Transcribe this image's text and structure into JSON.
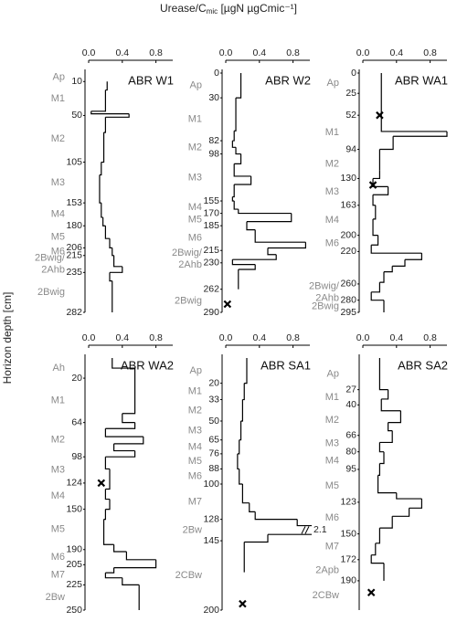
{
  "figure": {
    "x_title": {
      "main": "Urease/C",
      "sub": "mic",
      "unit": " [µgN µgCmic⁻¹]"
    },
    "y_title": "Horizon depth [cm]"
  },
  "chart_data": [
    {
      "type": "step",
      "title": "ABR W1",
      "color": "#000000",
      "xlim": [
        0,
        1.0
      ],
      "xticks": [
        {
          "value": 0,
          "label": "0.0"
        },
        0.4,
        0.8
      ],
      "ylim": [
        0,
        282
      ],
      "yticks": [
        10,
        50,
        105,
        153,
        180,
        206,
        215,
        235,
        282
      ],
      "depths": [
        10,
        20,
        45,
        48,
        52,
        70,
        105,
        120,
        153,
        170,
        180,
        195,
        206,
        215,
        228,
        235,
        245,
        282
      ],
      "values": [
        0.22,
        0.2,
        0.03,
        0.48,
        0.2,
        0.18,
        0.15,
        0.13,
        0.15,
        0.17,
        0.2,
        0.25,
        0.28,
        0.3,
        0.4,
        0.25,
        0.28
      ],
      "marker_values": [],
      "marker_depths": [],
      "horizons": [
        {
          "name": [
            "Ap"
          ],
          "top": 0,
          "bottom": 10
        },
        {
          "name": [
            "M1"
          ],
          "top": 10,
          "bottom": 50
        },
        {
          "name": [
            "M2"
          ],
          "top": 50,
          "bottom": 105
        },
        {
          "name": [
            "M3"
          ],
          "top": 105,
          "bottom": 153
        },
        {
          "name": [
            "M4"
          ],
          "top": 153,
          "bottom": 180
        },
        {
          "name": [
            "M5"
          ],
          "top": 180,
          "bottom": 206
        },
        {
          "name": [
            "M6"
          ],
          "top": 206,
          "bottom": 215
        },
        {
          "name": [
            "2Bwig/",
            "2Ahb"
          ],
          "top": 215,
          "bottom": 235
        },
        {
          "name": [
            "2Bwig"
          ],
          "top": 235,
          "bottom": 282
        }
      ]
    },
    {
      "type": "step",
      "title": "ABR W2",
      "color": "#000000",
      "xlim": [
        0,
        1.0
      ],
      "xticks": [
        {
          "value": 0,
          "label": "0.0"
        },
        0.4,
        0.8
      ],
      "ylim": [
        0,
        290
      ],
      "yticks": [
        0,
        30,
        82,
        98,
        155,
        170,
        185,
        215,
        230,
        262,
        290
      ],
      "depths": [
        0,
        30,
        70,
        82,
        90,
        98,
        110,
        125,
        135,
        150,
        155,
        165,
        170,
        180,
        190,
        205,
        212,
        220,
        226,
        232,
        238,
        262
      ],
      "values": [
        0.18,
        0.12,
        0.1,
        0.08,
        0.12,
        0.18,
        0.1,
        0.3,
        0.1,
        0.08,
        0.1,
        0.15,
        0.78,
        0.25,
        0.35,
        0.95,
        0.5,
        0.6,
        0.08,
        0.35,
        0.15
      ],
      "marker_values": [
        0.02
      ],
      "marker_depths": [
        280
      ],
      "horizons": [
        {
          "name": [
            "Ap"
          ],
          "top": 0,
          "bottom": 30
        },
        {
          "name": [
            "M1"
          ],
          "top": 30,
          "bottom": 82
        },
        {
          "name": [
            "M2"
          ],
          "top": 82,
          "bottom": 98
        },
        {
          "name": [
            "M3"
          ],
          "top": 98,
          "bottom": 155
        },
        {
          "name": [
            "M4"
          ],
          "top": 155,
          "bottom": 170
        },
        {
          "name": [
            "M5"
          ],
          "top": 170,
          "bottom": 185
        },
        {
          "name": [
            "M6"
          ],
          "top": 185,
          "bottom": 215
        },
        {
          "name": [
            "2Bwig/",
            "2Ahb"
          ],
          "top": 215,
          "bottom": 235
        },
        {
          "name": [
            "2Bwig"
          ],
          "top": 262,
          "bottom": 290
        }
      ]
    },
    {
      "type": "step",
      "title": "ABR WA1",
      "color": "#000000",
      "xlim": [
        0,
        1.0
      ],
      "xticks": [
        {
          "value": 0,
          "label": "0.0"
        },
        0.4,
        0.8
      ],
      "ylim": [
        0,
        295
      ],
      "yticks": [
        0,
        25,
        52,
        94,
        130,
        163,
        200,
        220,
        260,
        280,
        295
      ],
      "depths": [
        0,
        72,
        78,
        94,
        120,
        130,
        140,
        150,
        163,
        180,
        200,
        212,
        222,
        230,
        238,
        245,
        258,
        270,
        280,
        295
      ],
      "values": [
        0.22,
        1.0,
        0.36,
        0.2,
        0.2,
        0.12,
        0.3,
        0.12,
        0.15,
        0.12,
        0.18,
        0.1,
        0.7,
        0.5,
        0.35,
        0.25,
        0.2,
        0.1,
        0.25
      ],
      "marker_values": [
        0.2,
        0.12
      ],
      "marker_depths": [
        52,
        138
      ],
      "horizons": [
        {
          "name": [
            "Ap"
          ],
          "top": 0,
          "bottom": 25
        },
        {
          "name": [
            "M1"
          ],
          "top": 52,
          "bottom": 94
        },
        {
          "name": [
            "M2"
          ],
          "top": 94,
          "bottom": 130
        },
        {
          "name": [
            "M3"
          ],
          "top": 130,
          "bottom": 163
        },
        {
          "name": [
            "M4"
          ],
          "top": 163,
          "bottom": 200
        },
        {
          "name": [
            "M6"
          ],
          "top": 200,
          "bottom": 220
        },
        {
          "name": [
            "2Bwig/",
            "2Ahb"
          ],
          "top": 260,
          "bottom": 280
        },
        {
          "name": [
            "2Bwig"
          ],
          "top": 280,
          "bottom": 295
        }
      ]
    },
    {
      "type": "step",
      "title": "ABR WA2",
      "color": "#000000",
      "xlim": [
        0,
        1.0
      ],
      "xticks": [
        {
          "value": 0,
          "label": "0.0"
        },
        0.4,
        0.8
      ],
      "ylim": [
        0,
        250
      ],
      "yticks": [
        20,
        64,
        98,
        124,
        150,
        190,
        205,
        225,
        250
      ],
      "depths": [
        0,
        10,
        55,
        64,
        70,
        78,
        85,
        92,
        98,
        110,
        130,
        140,
        150,
        160,
        185,
        192,
        200,
        208,
        213,
        218,
        225,
        250
      ],
      "values": [
        0.28,
        0.55,
        0.4,
        0.55,
        0.2,
        0.65,
        0.3,
        0.55,
        0.2,
        0.25,
        0.2,
        0.25,
        0.2,
        0.18,
        0.3,
        0.45,
        0.8,
        0.3,
        0.2,
        0.4,
        0.6
      ],
      "marker_values": [
        0.15
      ],
      "marker_depths": [
        124
      ],
      "horizons": [
        {
          "name": [
            "Ah"
          ],
          "top": 0,
          "bottom": 20
        },
        {
          "name": [
            "M1"
          ],
          "top": 20,
          "bottom": 64
        },
        {
          "name": [
            "M2"
          ],
          "top": 64,
          "bottom": 98
        },
        {
          "name": [
            "M3"
          ],
          "top": 98,
          "bottom": 124
        },
        {
          "name": [
            "M4"
          ],
          "top": 124,
          "bottom": 150
        },
        {
          "name": [
            "M5"
          ],
          "top": 150,
          "bottom": 190
        },
        {
          "name": [
            "M6"
          ],
          "top": 190,
          "bottom": 205
        },
        {
          "name": [
            "M7"
          ],
          "top": 205,
          "bottom": 225
        },
        {
          "name": [
            "2Bw"
          ],
          "top": 225,
          "bottom": 250
        }
      ]
    },
    {
      "type": "step",
      "title": "ABR SA1",
      "color": "#000000",
      "xlim": [
        0,
        1.0
      ],
      "xticks": [
        {
          "value": 0,
          "label": "0.0"
        },
        0.4,
        0.8
      ],
      "ylim": [
        0,
        200
      ],
      "yticks": [
        20,
        33,
        50,
        65,
        76,
        88,
        100,
        128,
        145,
        200
      ],
      "depths": [
        0,
        20,
        33,
        50,
        65,
        76,
        88,
        100,
        115,
        122,
        128,
        133,
        140,
        146,
        170
      ],
      "values": [
        0.25,
        0.22,
        0.2,
        0.18,
        0.16,
        0.14,
        0.16,
        0.2,
        0.28,
        0.35,
        0.85,
        2.1,
        0.5,
        0.22
      ],
      "marker_values": [
        0.2
      ],
      "marker_depths": [
        195
      ],
      "horizons": [
        {
          "name": [
            "Ap"
          ],
          "top": 0,
          "bottom": 20
        },
        {
          "name": [
            "M1"
          ],
          "top": 20,
          "bottom": 33
        },
        {
          "name": [
            "M2"
          ],
          "top": 33,
          "bottom": 50
        },
        {
          "name": [
            "M3"
          ],
          "top": 50,
          "bottom": 65
        },
        {
          "name": [
            "M4"
          ],
          "top": 65,
          "bottom": 76
        },
        {
          "name": [
            "M5"
          ],
          "top": 76,
          "bottom": 88
        },
        {
          "name": [
            "M6"
          ],
          "top": 88,
          "bottom": 100
        },
        {
          "name": [
            "M7"
          ],
          "top": 100,
          "bottom": 128
        },
        {
          "name": [
            "2Bw"
          ],
          "top": 128,
          "bottom": 145
        },
        {
          "name": [
            "2CBw"
          ],
          "top": 145,
          "bottom": 200
        }
      ]
    },
    {
      "type": "step",
      "title": "ABR SA2",
      "color": "#000000",
      "xlim": [
        0,
        1.0
      ],
      "xticks": [
        {
          "value": 0,
          "label": "0.0"
        },
        0.4,
        0.8
      ],
      "ylim": [
        0,
        215
      ],
      "yticks": [
        27,
        40,
        66,
        80,
        95,
        123,
        150,
        172,
        190
      ],
      "depths": [
        0,
        27,
        35,
        45,
        55,
        62,
        72,
        80,
        90,
        100,
        115,
        120,
        128,
        135,
        145,
        158,
        168,
        175,
        180,
        190
      ],
      "values": [
        0.2,
        0.3,
        0.22,
        0.45,
        0.3,
        0.35,
        0.2,
        0.25,
        0.2,
        0.18,
        0.4,
        0.7,
        0.55,
        0.35,
        0.2,
        0.15,
        0.1,
        0.25,
        0.25
      ],
      "marker_values": [
        0.1
      ],
      "marker_depths": [
        200
      ],
      "horizons": [
        {
          "name": [
            "Ap"
          ],
          "top": 0,
          "bottom": 27
        },
        {
          "name": [
            "M1"
          ],
          "top": 27,
          "bottom": 40
        },
        {
          "name": [
            "M2"
          ],
          "top": 40,
          "bottom": 66
        },
        {
          "name": [
            "M3"
          ],
          "top": 66,
          "bottom": 80
        },
        {
          "name": [
            "M4"
          ],
          "top": 80,
          "bottom": 95
        },
        {
          "name": [
            "M5"
          ],
          "top": 95,
          "bottom": 123
        },
        {
          "name": [
            "M6"
          ],
          "top": 123,
          "bottom": 150
        },
        {
          "name": [
            "M7"
          ],
          "top": 150,
          "bottom": 172
        },
        {
          "name": [
            "2Apb"
          ],
          "top": 172,
          "bottom": 190
        },
        {
          "name": [
            "2CBw"
          ],
          "top": 190,
          "bottom": 215
        }
      ]
    }
  ]
}
